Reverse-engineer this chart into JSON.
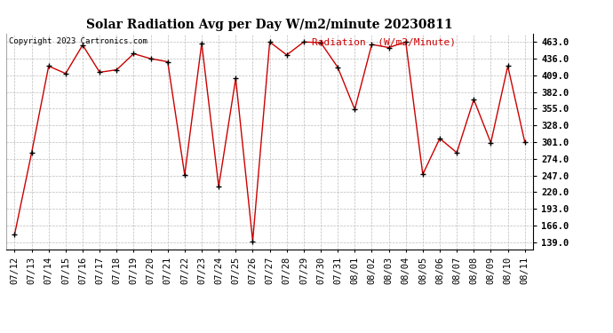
{
  "title": "Solar Radiation Avg per Day W/m2/minute 20230811",
  "copyright": "Copyright 2023 Cartronics.com",
  "legend_label": "Radiation  (W/m2/Minute)",
  "dates": [
    "07/12",
    "07/13",
    "07/14",
    "07/15",
    "07/16",
    "07/17",
    "07/18",
    "07/19",
    "07/20",
    "07/21",
    "07/22",
    "07/23",
    "07/24",
    "07/25",
    "07/26",
    "07/27",
    "07/28",
    "07/29",
    "07/30",
    "07/31",
    "08/01",
    "08/02",
    "08/03",
    "08/04",
    "08/05",
    "08/06",
    "08/07",
    "08/08",
    "08/09",
    "08/10",
    "08/11"
  ],
  "values": [
    152,
    284,
    424,
    412,
    458,
    414,
    418,
    444,
    436,
    431,
    248,
    461,
    229,
    404,
    141,
    463,
    442,
    463,
    462,
    422,
    354,
    459,
    454,
    463,
    249,
    307,
    284,
    370,
    300,
    424,
    301
  ],
  "line_color": "#cc0000",
  "marker_color": "#000000",
  "background_color": "#ffffff",
  "grid_color": "#bbbbbb",
  "title_fontsize": 10,
  "axis_fontsize": 7.5,
  "copyright_fontsize": 6.5,
  "legend_fontsize": 8,
  "legend_color": "#cc0000",
  "yticks": [
    139.0,
    166.0,
    193.0,
    220.0,
    247.0,
    274.0,
    301.0,
    328.0,
    355.0,
    382.0,
    409.0,
    436.0,
    463.0
  ],
  "ylim": [
    127,
    477
  ]
}
